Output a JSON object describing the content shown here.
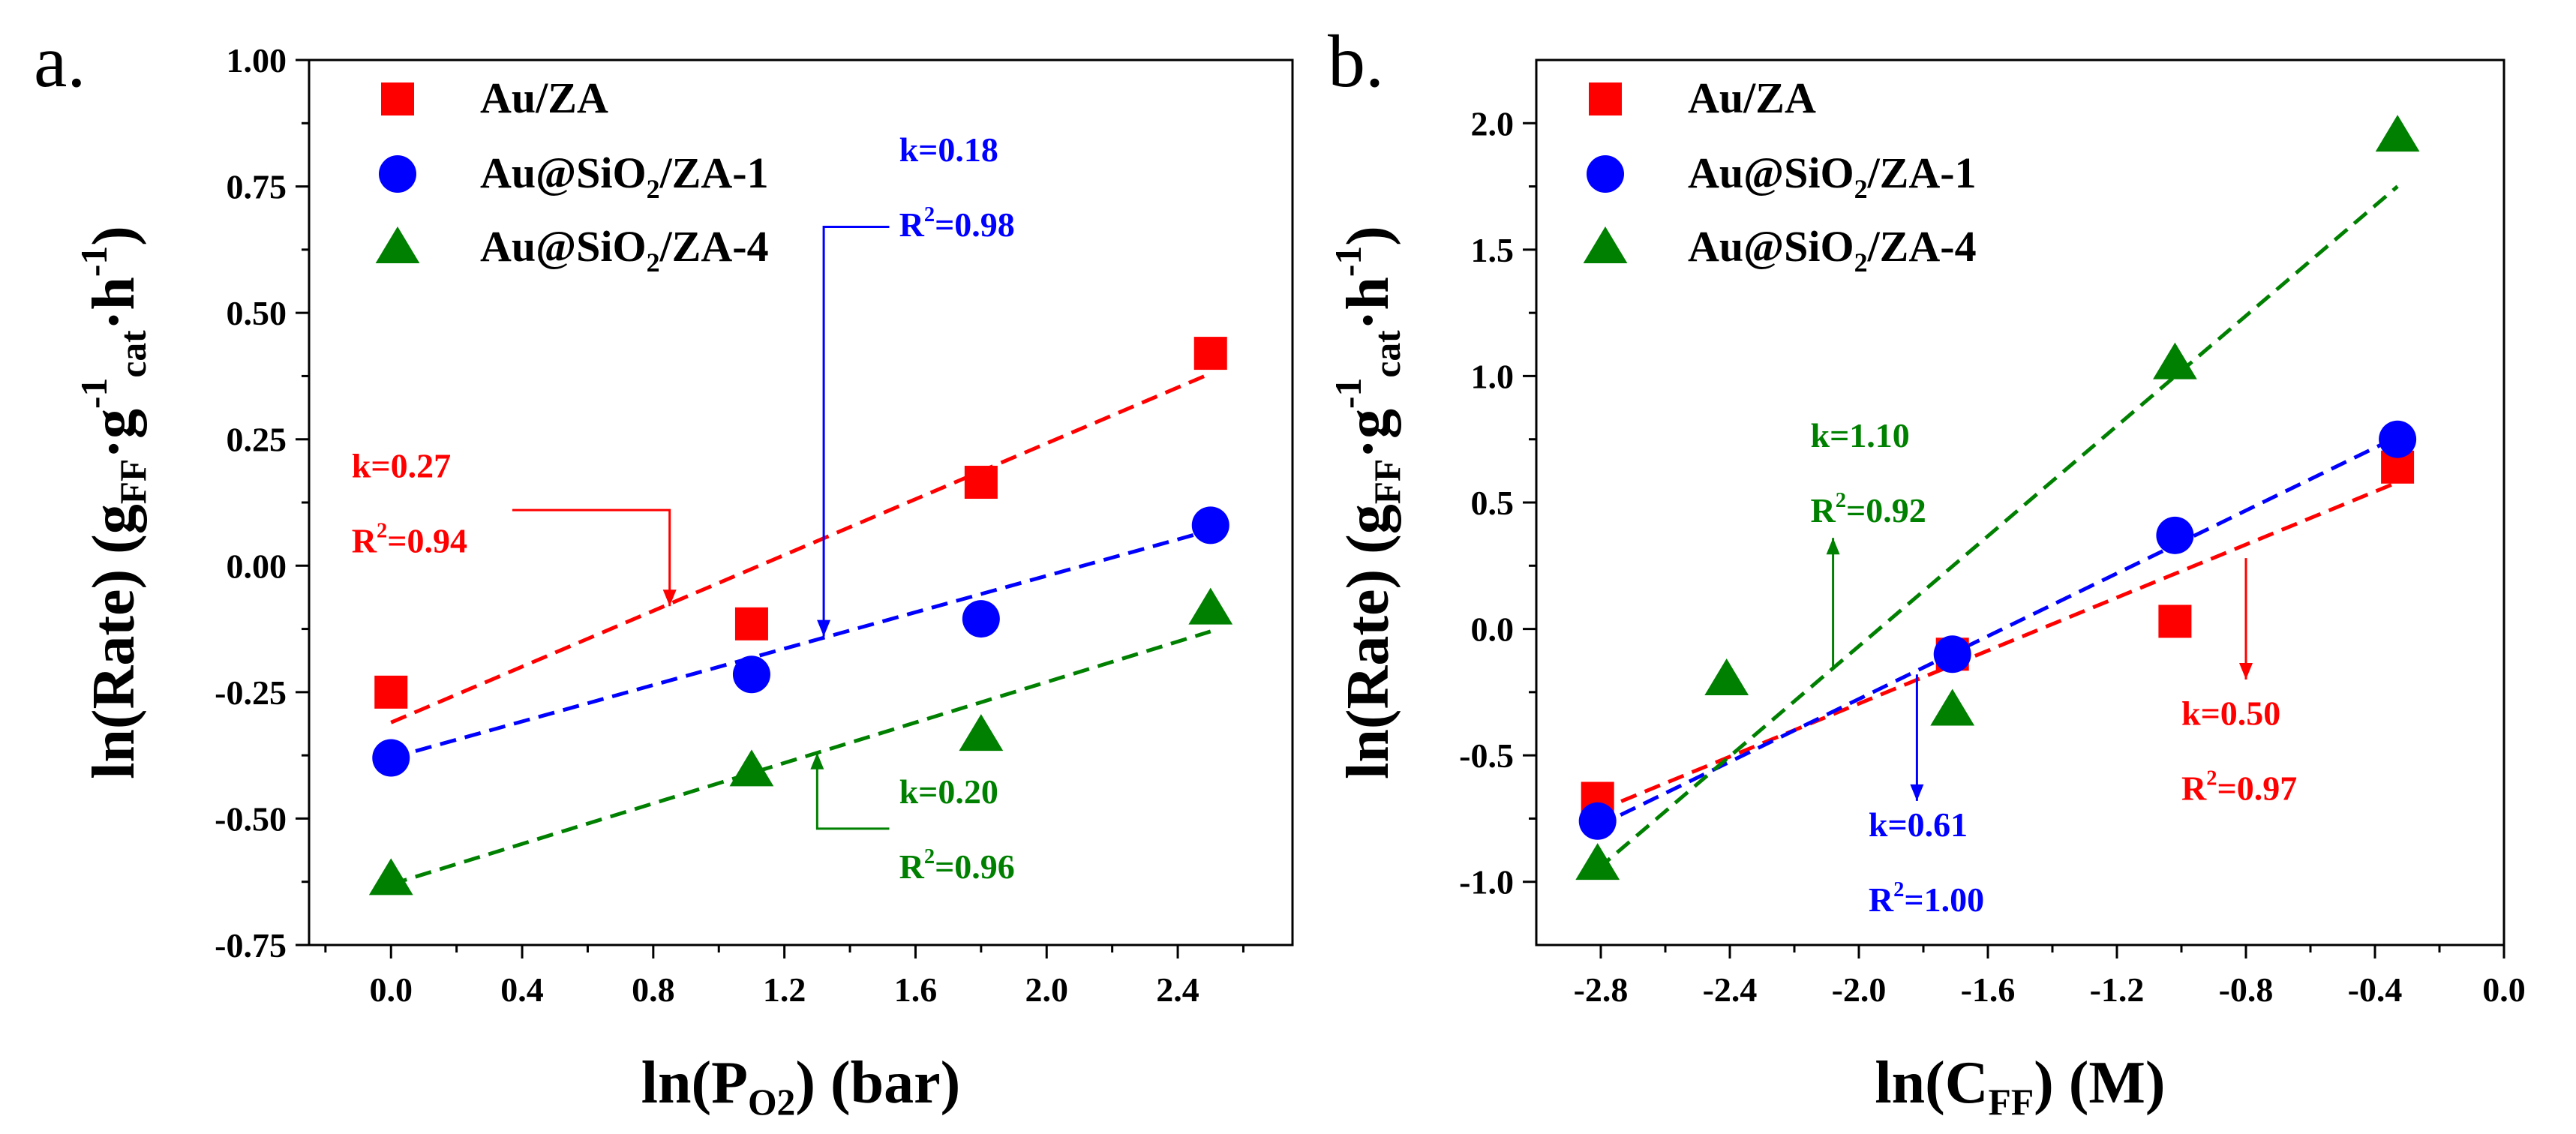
{
  "chart_data": [
    {
      "type": "scatter",
      "panel_label": "a.",
      "title": "",
      "xlabel": "ln(P_O2) (bar)",
      "ylabel": "ln(Rate) (g_FF·g_cat^-1·h^-1)",
      "xlabel_parts": {
        "main": "ln(P",
        "sub": "O2",
        "tail": ") (bar)"
      },
      "ylabel_parts": {
        "main": "ln(Rate) (g",
        "sub1": "FF",
        "dot1": "·g",
        "sup1": "-1",
        "sub2": "cat",
        "dot2": "·h",
        "sup2": "-1",
        "tail": ")"
      },
      "xlim": [
        -0.25,
        2.75
      ],
      "ylim": [
        -0.75,
        1.0
      ],
      "xticks": [
        0.0,
        0.4,
        0.8,
        1.2,
        1.6,
        2.0,
        2.4
      ],
      "xtick_labels": [
        "0.0",
        "0.4",
        "0.8",
        "1.2",
        "1.6",
        "2.0",
        "2.4"
      ],
      "yticks": [
        -0.75,
        -0.5,
        -0.25,
        0.0,
        0.25,
        0.5,
        0.75,
        1.0
      ],
      "ytick_labels": [
        "-0.75",
        "-0.50",
        "-0.25",
        "0.00",
        "0.25",
        "0.50",
        "0.75",
        "1.00"
      ],
      "legend_position": "top-left",
      "series": [
        {
          "name": "Au/ZA",
          "marker": "square",
          "color": "#ff0000",
          "x": [
            0.0,
            1.1,
            1.8,
            2.5
          ],
          "y": [
            -0.25,
            -0.115,
            0.165,
            0.42
          ],
          "fit": [
            [
              0.0,
              -0.31
            ],
            [
              2.5,
              0.38
            ]
          ]
        },
        {
          "name": "Au@SiO2/ZA-1",
          "marker": "circle",
          "color": "#0000ff",
          "x": [
            0.0,
            1.1,
            1.8,
            2.5
          ],
          "y": [
            -0.38,
            -0.215,
            -0.105,
            0.08
          ],
          "fit": [
            [
              0.0,
              -0.38
            ],
            [
              2.5,
              0.07
            ]
          ]
        },
        {
          "name": "Au@SiO2/ZA-4",
          "marker": "triangle",
          "color": "#008000",
          "x": [
            0.0,
            1.1,
            1.8,
            2.5
          ],
          "y": [
            -0.62,
            -0.405,
            -0.335,
            -0.085
          ],
          "fit": [
            [
              0.0,
              -0.63
            ],
            [
              2.5,
              -0.13
            ]
          ]
        }
      ],
      "annotations": [
        {
          "color": "#ff0000",
          "k": "k=0.27",
          "r2_prefix": "R",
          "r2_sup": "2",
          "r2_val": "=0.94",
          "text_at": [
            -0.12,
            0.175
          ],
          "arrow": [
            [
              0.37,
              0.11
            ],
            [
              0.85,
              0.11
            ],
            [
              0.85,
              -0.08
            ]
          ]
        },
        {
          "color": "#0000ff",
          "k": "k=0.18",
          "r2_prefix": "R",
          "r2_sup": "2",
          "r2_val": "=0.98",
          "text_at": [
            1.55,
            0.8
          ],
          "arrow": [
            [
              1.52,
              0.67
            ],
            [
              1.32,
              0.67
            ],
            [
              1.32,
              -0.14
            ]
          ]
        },
        {
          "color": "#008000",
          "k": "k=0.20",
          "r2_prefix": "R",
          "r2_sup": "2",
          "r2_val": "=0.96",
          "text_at": [
            1.55,
            -0.47
          ],
          "arrow": [
            [
              1.52,
              -0.52
            ],
            [
              1.3,
              -0.52
            ],
            [
              1.3,
              -0.37
            ]
          ]
        }
      ]
    },
    {
      "type": "scatter",
      "panel_label": "b.",
      "title": "",
      "xlabel": "ln(C_FF) (M)",
      "ylabel": "ln(Rate) (g_FF·g_cat^-1·h^-1)",
      "xlabel_parts": {
        "main": "ln(C",
        "sub": "FF",
        "tail": ") (M)"
      },
      "ylabel_parts": {
        "main": "ln(Rate) (g",
        "sub1": "FF",
        "dot1": "·g",
        "sup1": "-1",
        "sub2": "cat",
        "dot2": "·h",
        "sup2": "-1",
        "tail": ")"
      },
      "xlim": [
        -3.0,
        0.0
      ],
      "ylim": [
        -1.25,
        2.25
      ],
      "xticks": [
        -2.8,
        -2.4,
        -2.0,
        -1.6,
        -1.2,
        -0.8,
        -0.4,
        0.0
      ],
      "xtick_labels": [
        "-2.8",
        "-2.4",
        "-2.0",
        "-1.6",
        "-1.2",
        "-0.8",
        "-0.4",
        "0.0"
      ],
      "yticks": [
        -1.0,
        -0.5,
        0.0,
        0.5,
        1.0,
        1.5,
        2.0
      ],
      "ytick_labels": [
        "-1.0",
        "-0.5",
        "0.0",
        "0.5",
        "1.0",
        "1.5",
        "2.0"
      ],
      "legend_position": "top-left",
      "series": [
        {
          "name": "Au/ZA",
          "marker": "square",
          "color": "#ff0000",
          "x": [
            -2.81,
            -1.71,
            -1.02,
            -0.33
          ],
          "y": [
            -0.67,
            -0.1,
            0.03,
            0.64
          ],
          "fit": [
            [
              -2.81,
              -0.72
            ],
            [
              -0.33,
              0.58
            ]
          ]
        },
        {
          "name": "Au@SiO2/ZA-1",
          "marker": "circle",
          "color": "#0000ff",
          "x": [
            -2.81,
            -1.71,
            -1.02,
            -0.33
          ],
          "y": [
            -0.76,
            -0.1,
            0.37,
            0.75
          ],
          "fit": [
            [
              -2.81,
              -0.78
            ],
            [
              -0.33,
              0.76
            ]
          ]
        },
        {
          "name": "Au@SiO2/ZA-4",
          "marker": "triangle",
          "color": "#008000",
          "x": [
            -2.81,
            -2.41,
            -1.71,
            -1.02,
            -0.33
          ],
          "y": [
            -0.93,
            -0.2,
            -0.32,
            1.05,
            1.95
          ],
          "fit": [
            [
              -2.81,
              -0.95
            ],
            [
              -0.33,
              1.75
            ]
          ]
        }
      ],
      "annotations": [
        {
          "color": "#008000",
          "k": "k=1.10",
          "r2_prefix": "R",
          "r2_sup": "2",
          "r2_val": "=0.92",
          "text_at": [
            -2.15,
            0.72
          ],
          "arrow": [
            [
              -2.08,
              -0.15
            ],
            [
              -2.08,
              0.36
            ]
          ]
        },
        {
          "color": "#0000ff",
          "k": "k=0.61",
          "r2_prefix": "R",
          "r2_sup": "2",
          "r2_val": "=1.00",
          "text_at": [
            -1.97,
            -0.82
          ],
          "arrow": [
            [
              -1.82,
              -0.18
            ],
            [
              -1.82,
              -0.68
            ]
          ]
        },
        {
          "color": "#ff0000",
          "k": "k=0.50",
          "r2_prefix": "R",
          "r2_sup": "2",
          "r2_val": "=0.97",
          "text_at": [
            -1.0,
            -0.38
          ],
          "arrow": [
            [
              -0.8,
              0.28
            ],
            [
              -0.8,
              -0.2
            ]
          ]
        }
      ]
    }
  ]
}
